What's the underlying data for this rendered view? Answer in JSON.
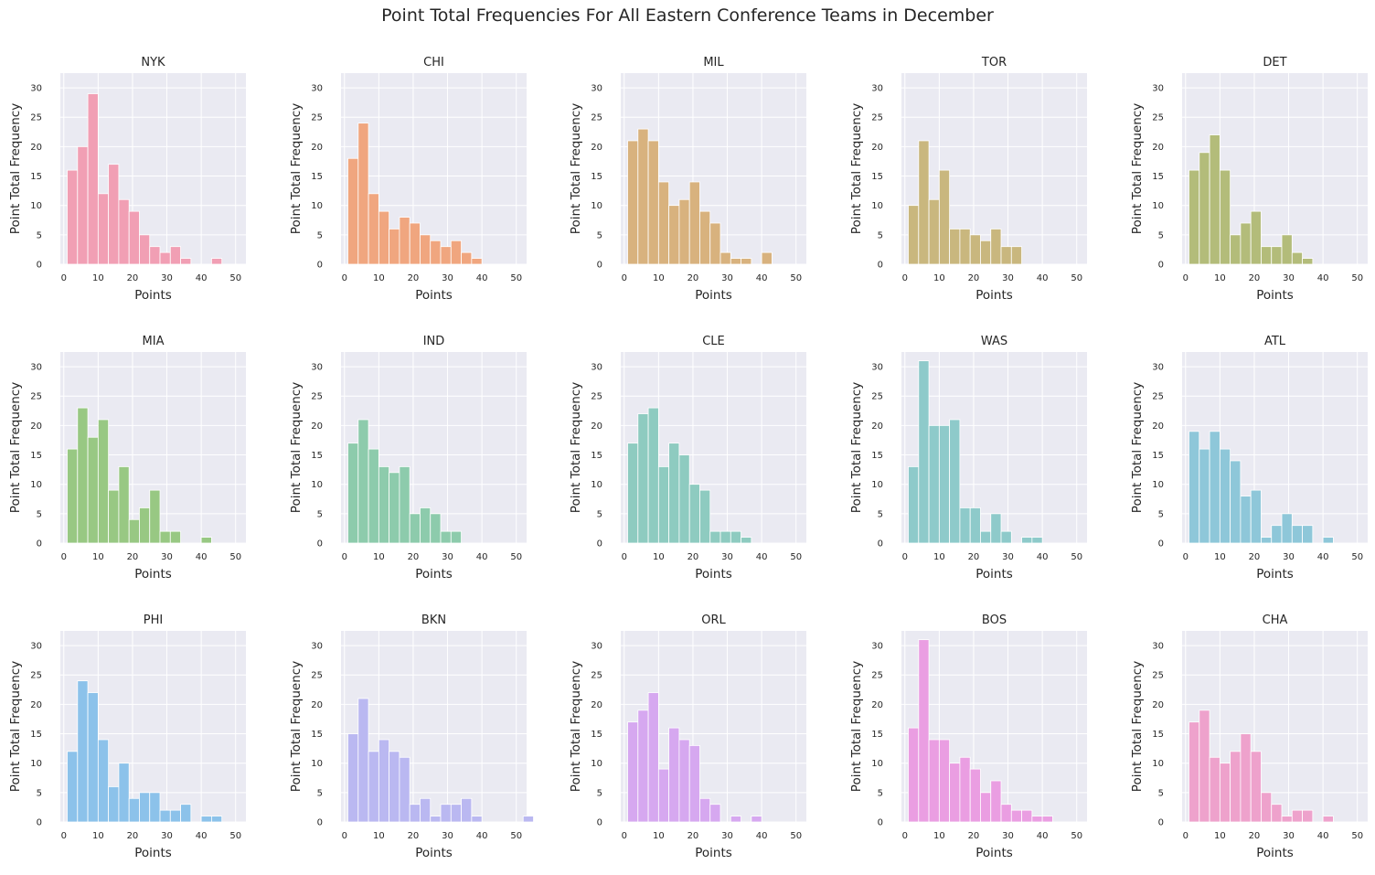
{
  "figure": {
    "title": "Point Total Frequencies For All Eastern Conference Teams in December"
  },
  "chart_data": {
    "type": "bar",
    "title": "Point Total Frequencies For All Eastern Conference Teams in December",
    "xlabel": "Points",
    "ylabel": "Point Total Frequency",
    "xlim": [
      -1,
      53
    ],
    "ylim": [
      0,
      32.5
    ],
    "xticks": [
      0,
      10,
      20,
      30,
      40,
      50
    ],
    "yticks": [
      0,
      5,
      10,
      15,
      20,
      25,
      30
    ],
    "bin_start": 1,
    "bin_width": 3,
    "grid": true,
    "panels": [
      {
        "name": "NYK",
        "color": "#f19fb4",
        "values": [
          16,
          20,
          29,
          12,
          17,
          11,
          9,
          5,
          3,
          2,
          3,
          1,
          0,
          0,
          1
        ]
      },
      {
        "name": "CHI",
        "color": "#f0a67f",
        "values": [
          18,
          24,
          12,
          9,
          6,
          8,
          7,
          5,
          4,
          3,
          4,
          2,
          1
        ]
      },
      {
        "name": "MIL",
        "color": "#d8b27e",
        "values": [
          21,
          23,
          21,
          14,
          10,
          11,
          14,
          9,
          7,
          2,
          1,
          1,
          0,
          2
        ]
      },
      {
        "name": "TOR",
        "color": "#c9b77e",
        "values": [
          10,
          21,
          11,
          16,
          6,
          6,
          5,
          4,
          6,
          3,
          3
        ]
      },
      {
        "name": "DET",
        "color": "#b3bc7a",
        "values": [
          16,
          19,
          22,
          16,
          5,
          7,
          9,
          3,
          3,
          5,
          2,
          1
        ]
      },
      {
        "name": "MIA",
        "color": "#98c883",
        "values": [
          16,
          23,
          18,
          21,
          9,
          13,
          4,
          6,
          9,
          2,
          2,
          0,
          0,
          1
        ]
      },
      {
        "name": "IND",
        "color": "#8dcbac",
        "values": [
          17,
          21,
          16,
          13,
          12,
          13,
          5,
          6,
          5,
          2,
          2
        ]
      },
      {
        "name": "CLE",
        "color": "#8ecbc0",
        "values": [
          17,
          22,
          23,
          13,
          17,
          15,
          10,
          9,
          2,
          2,
          2,
          1
        ]
      },
      {
        "name": "WAS",
        "color": "#8ecaca",
        "values": [
          13,
          31,
          20,
          20,
          21,
          6,
          6,
          2,
          5,
          2,
          0,
          1,
          1
        ]
      },
      {
        "name": "ATL",
        "color": "#8ec7d9",
        "values": [
          19,
          16,
          19,
          16,
          14,
          8,
          9,
          1,
          3,
          5,
          3,
          3,
          0,
          1
        ]
      },
      {
        "name": "PHI",
        "color": "#8cc2ea",
        "values": [
          12,
          24,
          22,
          14,
          6,
          10,
          4,
          5,
          5,
          2,
          2,
          3,
          0,
          1,
          1
        ]
      },
      {
        "name": "BKN",
        "color": "#bab8f1",
        "values": [
          15,
          21,
          12,
          14,
          12,
          11,
          3,
          4,
          1,
          3,
          3,
          4,
          1,
          0,
          0,
          0,
          0,
          1
        ]
      },
      {
        "name": "ORL",
        "color": "#d6a8f0",
        "values": [
          17,
          19,
          22,
          9,
          16,
          14,
          13,
          4,
          3,
          0,
          1,
          0,
          1
        ]
      },
      {
        "name": "BOS",
        "color": "#ea9ee2",
        "values": [
          16,
          31,
          14,
          14,
          10,
          11,
          9,
          5,
          7,
          3,
          2,
          2,
          1,
          1
        ]
      },
      {
        "name": "CHA",
        "color": "#eea2cc",
        "values": [
          17,
          19,
          11,
          10,
          12,
          15,
          12,
          5,
          3,
          1,
          2,
          2,
          0,
          1
        ]
      }
    ]
  }
}
